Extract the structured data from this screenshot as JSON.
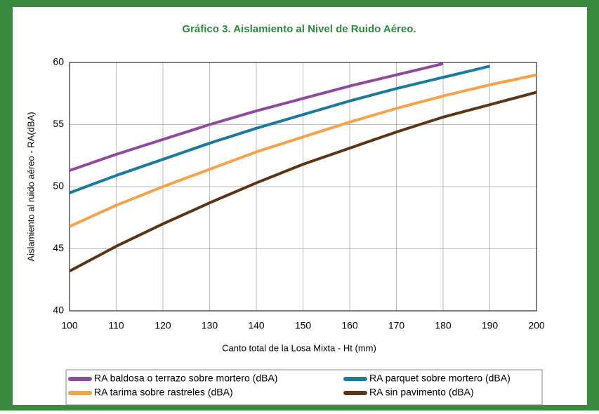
{
  "chart_data": {
    "type": "line",
    "title": "Gráfico 3. Aislamiento al Nivel de Ruido Aéreo.",
    "xlabel": "Canto total de la Losa Mixta - Ht (mm)",
    "ylabel": "Aislamiento al ruido aéreo - RA(dBA)",
    "x": [
      100,
      110,
      120,
      130,
      140,
      150,
      160,
      170,
      180,
      190,
      200
    ],
    "series": [
      {
        "name": "RA baldosa o terrazo sobre mortero (dBA)",
        "color": "#8e4b9e",
        "values": [
          51.3,
          52.6,
          53.8,
          55.0,
          56.1,
          57.1,
          58.1,
          59.0,
          59.9,
          null,
          null
        ]
      },
      {
        "name": "RA parquet sobre mortero (dBA)",
        "color": "#1b7b9c",
        "values": [
          49.5,
          50.9,
          52.2,
          53.5,
          54.7,
          55.8,
          56.9,
          57.9,
          58.8,
          59.7,
          null
        ]
      },
      {
        "name": "RA tarima sobre rastreles (dBA)",
        "color": "#f5a24b",
        "values": [
          46.8,
          48.5,
          50.0,
          51.4,
          52.8,
          54.0,
          55.2,
          56.3,
          57.3,
          58.2,
          59.0
        ]
      },
      {
        "name": "RA sin pavimento (dBA)",
        "color": "#5b3516",
        "values": [
          43.2,
          45.2,
          47.0,
          48.7,
          50.3,
          51.8,
          53.1,
          54.4,
          55.6,
          56.6,
          57.6
        ]
      }
    ],
    "xlim": [
      100,
      200
    ],
    "xticks": [
      100,
      110,
      120,
      130,
      140,
      150,
      160,
      170,
      180,
      190,
      200
    ],
    "ylim": [
      40,
      60
    ],
    "yticks": [
      40,
      45,
      50,
      55,
      60
    ],
    "grid": true
  }
}
